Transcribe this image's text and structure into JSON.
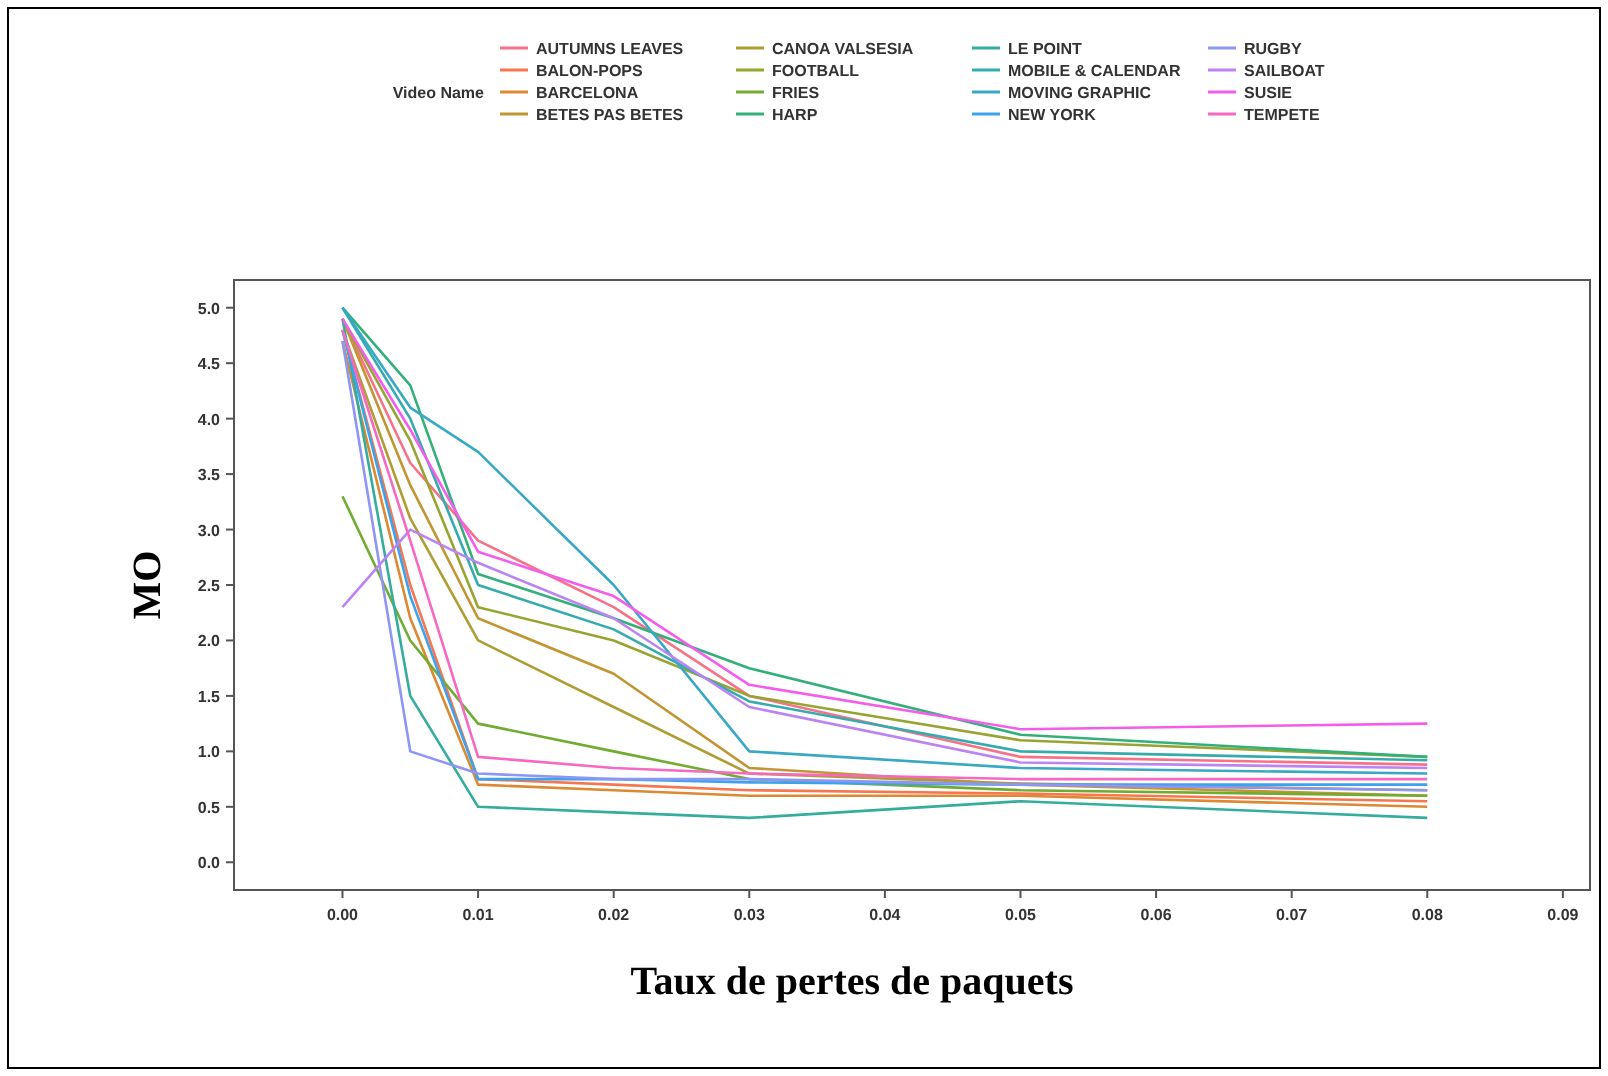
{
  "chart_data": {
    "type": "line",
    "xlabel": "Taux de pertes de paquets",
    "ylabel": "MO",
    "legend_title": "Video Name",
    "legend": "top",
    "grid": false,
    "marker": "none",
    "line_style": "solid",
    "xlim": [
      -0.008,
      0.092
    ],
    "xticks": [
      {
        "value": 0,
        "label": "0.00"
      },
      {
        "value": 0.01,
        "label": "0.01"
      },
      {
        "value": 0.02,
        "label": "0.02"
      },
      {
        "value": 0.03,
        "label": "0.03"
      },
      {
        "value": 0.04,
        "label": "0.04"
      },
      {
        "value": 0.05,
        "label": "0.05"
      },
      {
        "value": 0.06,
        "label": "0.06"
      },
      {
        "value": 0.07,
        "label": "0.07"
      },
      {
        "value": 0.08,
        "label": "0.08"
      },
      {
        "value": 0.09,
        "label": "0.09"
      }
    ],
    "ylim": [
      -0.25,
      5.25
    ],
    "yticks": [
      {
        "value": 0,
        "label": "0.0"
      },
      {
        "value": 0.5,
        "label": "0.5"
      },
      {
        "value": 1,
        "label": "1.0"
      },
      {
        "value": 1.5,
        "label": "1.5"
      },
      {
        "value": 2,
        "label": "2.0"
      },
      {
        "value": 2.5,
        "label": "2.5"
      },
      {
        "value": 3,
        "label": "3.0"
      },
      {
        "value": 3.5,
        "label": "3.5"
      },
      {
        "value": 4,
        "label": "4.0"
      },
      {
        "value": 4.5,
        "label": "4.5"
      },
      {
        "value": 5,
        "label": "5.0"
      }
    ],
    "x": [
      0,
      0.005,
      0.01,
      0.02,
      0.03,
      0.05,
      0.08
    ],
    "series": [
      {
        "name": "AUTUMNS LEAVES",
        "color": "#f77189",
        "values": [
          4.9,
          3.6,
          2.9,
          2.3,
          1.5,
          0.95,
          0.88
        ]
      },
      {
        "name": "BALON-POPS",
        "color": "#f7754f",
        "values": [
          4.8,
          2.5,
          0.75,
          0.7,
          0.65,
          0.62,
          0.55
        ]
      },
      {
        "name": "BARCELONA",
        "color": "#dc8932",
        "values": [
          4.7,
          2.2,
          0.7,
          0.65,
          0.6,
          0.6,
          0.5
        ]
      },
      {
        "name": "BETES PAS BETES",
        "color": "#c39532",
        "values": [
          4.9,
          3.4,
          2.2,
          1.7,
          0.85,
          0.7,
          0.6
        ]
      },
      {
        "name": "CANOA VALSESIA",
        "color": "#ae9d31",
        "values": [
          4.8,
          3.1,
          2.0,
          1.4,
          0.8,
          0.71,
          0.65
        ]
      },
      {
        "name": "FOOTBALL",
        "color": "#97a431",
        "values": [
          4.9,
          3.8,
          2.3,
          2.0,
          1.5,
          1.1,
          0.95
        ]
      },
      {
        "name": "FRIES",
        "color": "#6fac31",
        "values": [
          3.3,
          2.0,
          1.25,
          1.0,
          0.75,
          0.65,
          0.6
        ]
      },
      {
        "name": "HARP",
        "color": "#33b07a",
        "values": [
          5.0,
          4.3,
          2.6,
          2.2,
          1.75,
          1.15,
          0.95
        ]
      },
      {
        "name": "LE POINT",
        "color": "#35ad9c",
        "values": [
          4.9,
          1.5,
          0.5,
          0.45,
          0.4,
          0.55,
          0.4
        ]
      },
      {
        "name": "MOBILE & CALENDAR",
        "color": "#36abae",
        "values": [
          5.0,
          4.0,
          2.5,
          2.1,
          1.45,
          1.0,
          0.92
        ]
      },
      {
        "name": "MOVING GRAPHIC",
        "color": "#38a8c5",
        "values": [
          5.0,
          4.1,
          3.7,
          2.5,
          1.0,
          0.85,
          0.8
        ]
      },
      {
        "name": "NEW YORK",
        "color": "#3ba3ec",
        "values": [
          4.8,
          2.4,
          0.75,
          0.75,
          0.72,
          0.7,
          0.7
        ]
      },
      {
        "name": "RUGBY",
        "color": "#8e96f4",
        "values": [
          4.7,
          1.0,
          0.8,
          0.75,
          0.75,
          0.7,
          0.65
        ]
      },
      {
        "name": "SAILBOAT",
        "color": "#bb83f4",
        "values": [
          2.3,
          3.0,
          2.7,
          2.2,
          1.4,
          0.9,
          0.85
        ]
      },
      {
        "name": "SUSIE",
        "color": "#f45deb",
        "values": [
          4.9,
          3.9,
          2.8,
          2.4,
          1.6,
          1.2,
          1.25
        ]
      },
      {
        "name": "TEMPETE",
        "color": "#f668c2",
        "values": [
          4.8,
          2.9,
          0.95,
          0.85,
          0.8,
          0.75,
          0.75
        ]
      }
    ]
  }
}
